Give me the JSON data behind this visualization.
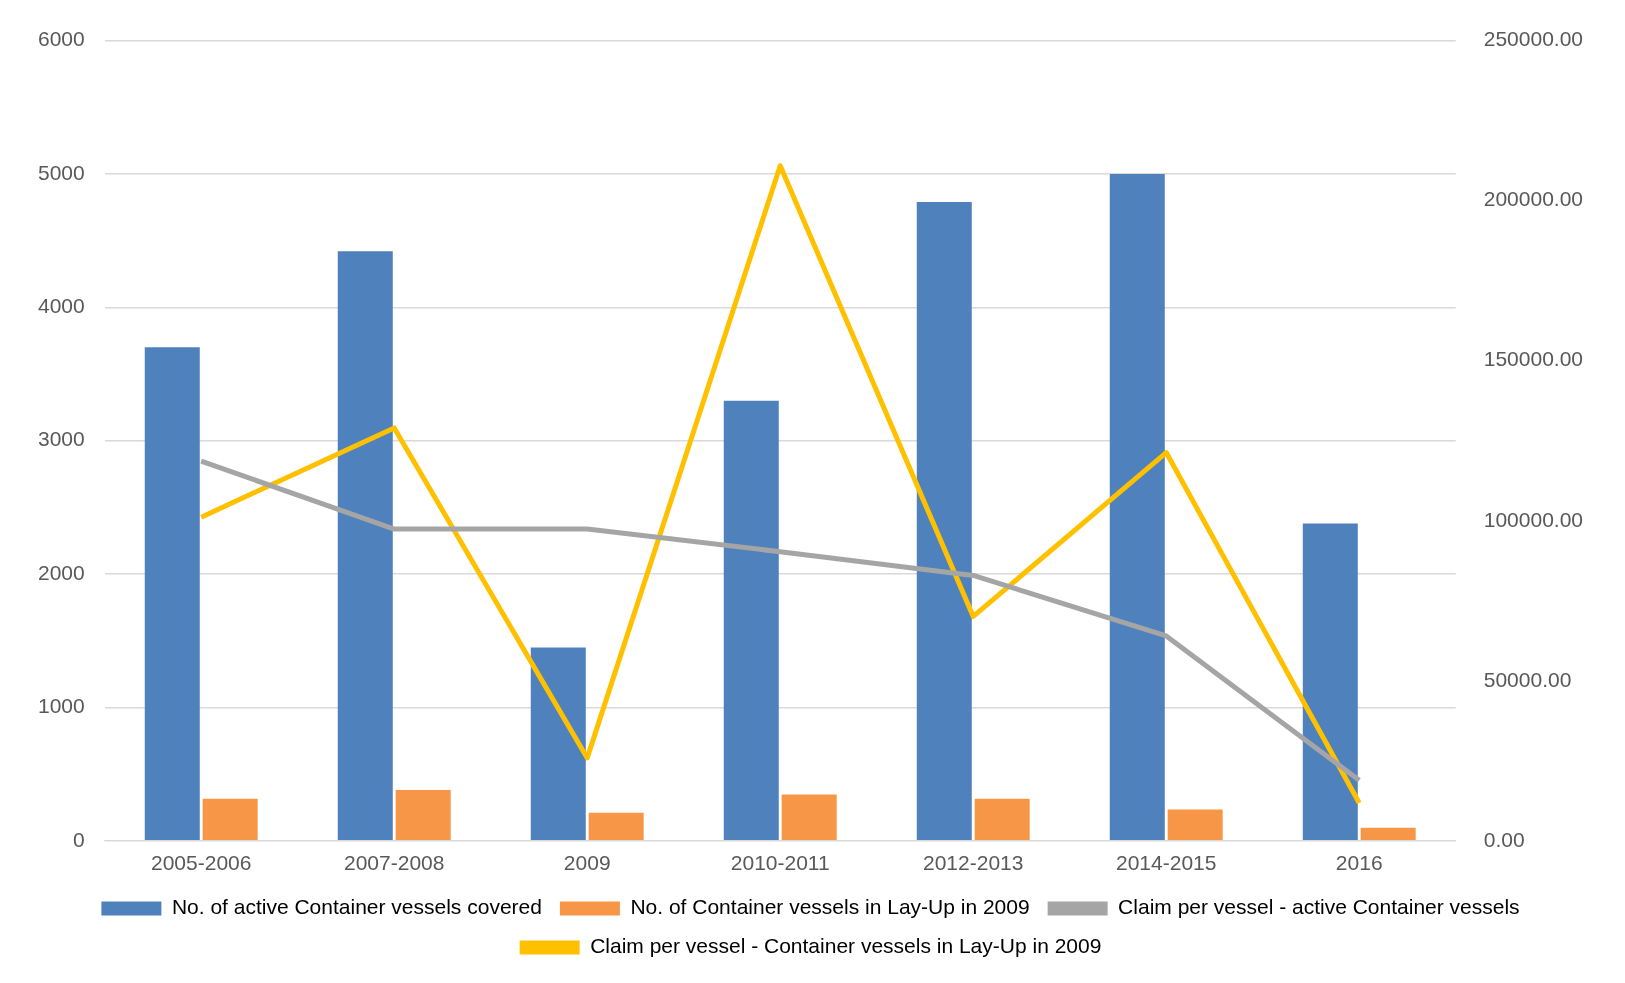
{
  "chart_data": {
    "type": "bar",
    "categories": [
      "2005-2006",
      "2007-2008",
      "2009",
      "2010-2011",
      "2012-2013",
      "2014-2015",
      "2016"
    ],
    "series": [
      {
        "name": "No. of active Container vessels covered",
        "color": "#4f81bd",
        "values": [
          3700,
          4420,
          1450,
          3300,
          4790,
          5000,
          2380
        ]
      },
      {
        "name": "No. of Container vessels in Lay-Up in 2009",
        "color": "#f79646",
        "values": [
          315,
          380,
          210,
          348,
          315,
          234,
          97
        ]
      },
      {
        "name": "Claim per vessel - active Container vessels",
        "type": "line",
        "axis": "y2",
        "color": "#a5a5a5",
        "values": [
          118600,
          97400,
          97400,
          90300,
          82900,
          64000,
          18900
        ]
      },
      {
        "name": "Claim per vessel - Container vessels in Lay-Up in 2009",
        "type": "line",
        "axis": "y2",
        "color": "#ffc000",
        "values": [
          101100,
          129000,
          25900,
          210900,
          70100,
          121300,
          11800
        ]
      }
    ],
    "ylim": [
      0,
      6000
    ],
    "yticks": [
      0,
      1000,
      2000,
      3000,
      4000,
      5000,
      6000
    ],
    "y2lim": [
      0,
      250000
    ],
    "y2ticks": [
      {
        "value": 0,
        "label": "0.00"
      },
      {
        "value": 50000,
        "label": "50000.00"
      },
      {
        "value": 100000,
        "label": "100000.00"
      },
      {
        "value": 150000,
        "label": "150000.00"
      },
      {
        "value": 200000,
        "label": "200000.00"
      },
      {
        "value": 250000,
        "label": "250000.00"
      }
    ],
    "grid": "y",
    "legend": "bottom",
    "marker": "none"
  }
}
